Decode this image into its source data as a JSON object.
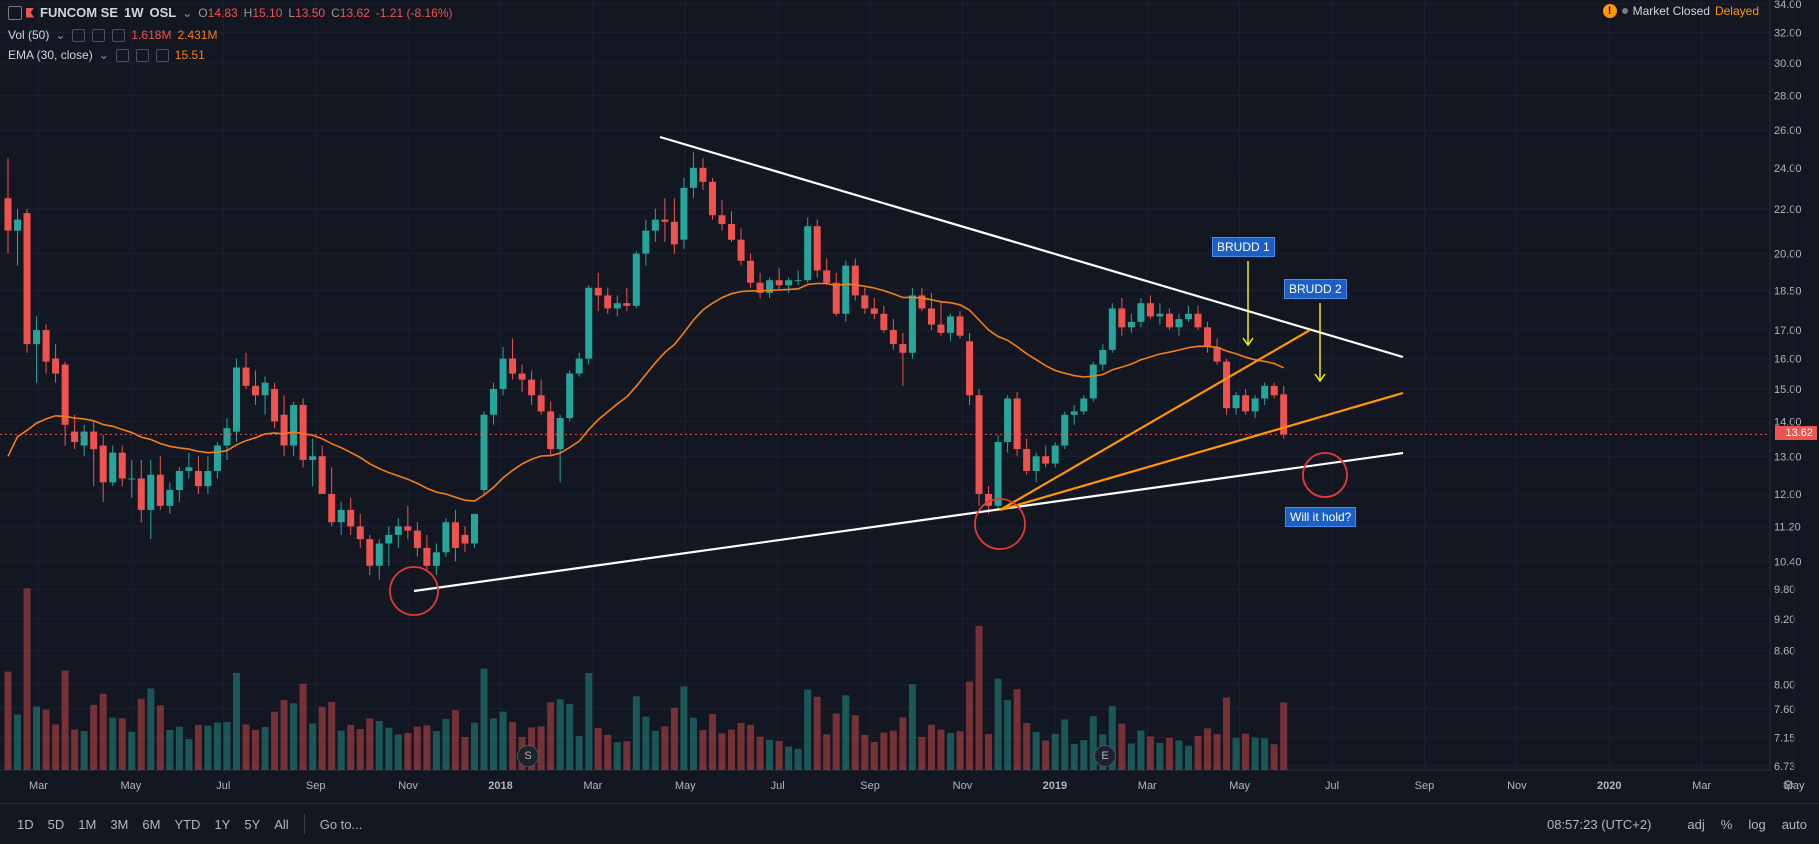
{
  "header": {
    "symbol": "FUNCOM SE",
    "interval": "1W",
    "exchange": "OSL",
    "ohlc": {
      "o_label": "O",
      "o": "14.83",
      "h_label": "H",
      "h": "15.10",
      "l_label": "L",
      "l": "13.50",
      "c_label": "C",
      "c": "13.62",
      "change": "-1.21 (-8.16%)"
    },
    "vol_label": "Vol (50)",
    "vol_values": [
      "1.618M",
      "2.431M"
    ],
    "ema_label": "EMA (30, close)",
    "ema_value": "15.51"
  },
  "status": {
    "market": "Market Closed",
    "delay": "Delayed"
  },
  "annotations": {
    "brudd1": "BRUDD 1",
    "brudd2": "BRUDD 2",
    "will_hold": "Will it hold?"
  },
  "events": {
    "split": "S",
    "earnings": "E"
  },
  "last_price_tag": "13.62",
  "colors": {
    "up": "#26a69a",
    "down": "#ef5350",
    "ema": "#f57f17",
    "trend_white": "#ffffff",
    "trend_orange": "#ff9800",
    "circle": "#e53935",
    "arrow": "#ffff00"
  },
  "toolbar": {
    "ranges": [
      "1D",
      "5D",
      "1M",
      "3M",
      "6M",
      "YTD",
      "1Y",
      "5Y",
      "All"
    ],
    "goto": "Go to...",
    "time": "08:57:23 (UTC+2)",
    "options": [
      "adj",
      "%",
      "log",
      "auto"
    ]
  },
  "chart_data": {
    "type": "candlestick",
    "y_scale": "log",
    "ylim": [
      6.73,
      34.0
    ],
    "y_ticks": [
      "34.00",
      "32.00",
      "30.00",
      "28.00",
      "26.00",
      "24.00",
      "22.00",
      "20.00",
      "18.50",
      "17.00",
      "16.00",
      "15.00",
      "14.00",
      "13.00",
      "12.00",
      "11.20",
      "10.40",
      "9.80",
      "9.20",
      "8.60",
      "8.00",
      "7.60",
      "7.15",
      "6.73"
    ],
    "x_ticks": [
      "Mar",
      "May",
      "Jul",
      "Sep",
      "Nov",
      "2018",
      "Mar",
      "May",
      "Jul",
      "Sep",
      "Nov",
      "2019",
      "Mar",
      "May",
      "Jul",
      "Sep",
      "Nov",
      "2020",
      "Mar",
      "May"
    ],
    "candles": [
      {
        "o": 22.5,
        "h": 24.5,
        "l": 20.0,
        "c": 21.0
      },
      {
        "o": 21.0,
        "h": 22.0,
        "l": 19.5,
        "c": 21.5
      },
      {
        "o": 21.8,
        "h": 22.0,
        "l": 16.2,
        "c": 16.5
      },
      {
        "o": 16.5,
        "h": 17.5,
        "l": 15.2,
        "c": 17.0
      },
      {
        "o": 17.0,
        "h": 17.2,
        "l": 15.5,
        "c": 15.9
      },
      {
        "o": 16.0,
        "h": 16.5,
        "l": 15.2,
        "c": 15.5
      },
      {
        "o": 15.8,
        "h": 15.9,
        "l": 13.3,
        "c": 13.9
      },
      {
        "o": 13.7,
        "h": 14.2,
        "l": 13.2,
        "c": 13.4
      },
      {
        "o": 13.3,
        "h": 13.9,
        "l": 13.0,
        "c": 13.7
      },
      {
        "o": 13.7,
        "h": 14.0,
        "l": 12.2,
        "c": 13.2
      },
      {
        "o": 13.3,
        "h": 13.6,
        "l": 11.8,
        "c": 12.3
      },
      {
        "o": 12.3,
        "h": 13.3,
        "l": 12.2,
        "c": 13.1
      },
      {
        "o": 13.1,
        "h": 13.3,
        "l": 12.2,
        "c": 12.4
      },
      {
        "o": 12.4,
        "h": 12.9,
        "l": 11.9,
        "c": 12.4
      },
      {
        "o": 12.4,
        "h": 12.9,
        "l": 11.3,
        "c": 11.6
      },
      {
        "o": 11.6,
        "h": 12.9,
        "l": 10.9,
        "c": 12.5
      },
      {
        "o": 12.5,
        "h": 13.0,
        "l": 11.6,
        "c": 11.7
      },
      {
        "o": 11.7,
        "h": 12.3,
        "l": 11.5,
        "c": 12.1
      },
      {
        "o": 12.1,
        "h": 12.7,
        "l": 11.8,
        "c": 12.6
      },
      {
        "o": 12.6,
        "h": 13.1,
        "l": 12.4,
        "c": 12.7
      },
      {
        "o": 12.6,
        "h": 13.0,
        "l": 12.0,
        "c": 12.2
      },
      {
        "o": 12.2,
        "h": 13.0,
        "l": 12.0,
        "c": 12.6
      },
      {
        "o": 12.6,
        "h": 13.4,
        "l": 12.4,
        "c": 13.3
      },
      {
        "o": 13.3,
        "h": 14.1,
        "l": 12.9,
        "c": 13.8
      },
      {
        "o": 13.7,
        "h": 16.0,
        "l": 13.4,
        "c": 15.7
      },
      {
        "o": 15.7,
        "h": 16.2,
        "l": 15.0,
        "c": 15.1
      },
      {
        "o": 15.1,
        "h": 15.6,
        "l": 14.5,
        "c": 14.8
      },
      {
        "o": 14.8,
        "h": 15.4,
        "l": 14.2,
        "c": 15.2
      },
      {
        "o": 15.0,
        "h": 15.2,
        "l": 13.8,
        "c": 14.0
      },
      {
        "o": 14.2,
        "h": 14.8,
        "l": 13.0,
        "c": 13.3
      },
      {
        "o": 13.3,
        "h": 14.6,
        "l": 13.0,
        "c": 14.5
      },
      {
        "o": 14.5,
        "h": 14.7,
        "l": 12.7,
        "c": 12.9
      },
      {
        "o": 12.9,
        "h": 13.5,
        "l": 12.2,
        "c": 13.0
      },
      {
        "o": 13.0,
        "h": 13.3,
        "l": 12.0,
        "c": 12.0
      },
      {
        "o": 12.0,
        "h": 12.7,
        "l": 11.2,
        "c": 11.3
      },
      {
        "o": 11.3,
        "h": 11.8,
        "l": 11.0,
        "c": 11.6
      },
      {
        "o": 11.6,
        "h": 11.9,
        "l": 11.0,
        "c": 11.2
      },
      {
        "o": 11.2,
        "h": 11.5,
        "l": 10.7,
        "c": 10.9
      },
      {
        "o": 10.9,
        "h": 11.0,
        "l": 10.1,
        "c": 10.3
      },
      {
        "o": 10.3,
        "h": 10.9,
        "l": 10.0,
        "c": 10.8
      },
      {
        "o": 10.8,
        "h": 11.2,
        "l": 10.3,
        "c": 11.0
      },
      {
        "o": 11.0,
        "h": 11.4,
        "l": 10.7,
        "c": 11.2
      },
      {
        "o": 11.2,
        "h": 11.7,
        "l": 10.9,
        "c": 11.1
      },
      {
        "o": 11.1,
        "h": 11.3,
        "l": 10.5,
        "c": 10.7
      },
      {
        "o": 10.7,
        "h": 11.0,
        "l": 10.2,
        "c": 10.3
      },
      {
        "o": 10.3,
        "h": 10.8,
        "l": 10.1,
        "c": 10.6
      },
      {
        "o": 10.6,
        "h": 11.4,
        "l": 10.5,
        "c": 11.3
      },
      {
        "o": 11.3,
        "h": 11.6,
        "l": 10.4,
        "c": 10.7
      },
      {
        "o": 11.0,
        "h": 11.2,
        "l": 10.6,
        "c": 10.8
      },
      {
        "o": 10.8,
        "h": 11.5,
        "l": 10.7,
        "c": 11.5
      },
      {
        "o": 12.1,
        "h": 14.3,
        "l": 12.0,
        "c": 14.2
      },
      {
        "o": 14.2,
        "h": 15.2,
        "l": 13.9,
        "c": 15.0
      },
      {
        "o": 15.0,
        "h": 16.4,
        "l": 14.8,
        "c": 16.0
      },
      {
        "o": 16.0,
        "h": 16.7,
        "l": 15.3,
        "c": 15.5
      },
      {
        "o": 15.5,
        "h": 15.8,
        "l": 14.9,
        "c": 15.3
      },
      {
        "o": 15.3,
        "h": 15.6,
        "l": 14.5,
        "c": 14.8
      },
      {
        "o": 14.8,
        "h": 15.3,
        "l": 14.2,
        "c": 14.3
      },
      {
        "o": 14.3,
        "h": 14.6,
        "l": 13.0,
        "c": 13.2
      },
      {
        "o": 13.2,
        "h": 14.2,
        "l": 12.3,
        "c": 14.1
      },
      {
        "o": 14.1,
        "h": 15.6,
        "l": 14.0,
        "c": 15.5
      },
      {
        "o": 15.5,
        "h": 16.2,
        "l": 15.4,
        "c": 16.0
      },
      {
        "o": 16.0,
        "h": 18.7,
        "l": 15.8,
        "c": 18.6
      },
      {
        "o": 18.6,
        "h": 19.2,
        "l": 17.7,
        "c": 18.3
      },
      {
        "o": 18.3,
        "h": 18.6,
        "l": 17.6,
        "c": 17.8
      },
      {
        "o": 17.8,
        "h": 18.3,
        "l": 17.5,
        "c": 18.0
      },
      {
        "o": 18.0,
        "h": 18.6,
        "l": 17.7,
        "c": 17.9
      },
      {
        "o": 17.9,
        "h": 20.1,
        "l": 17.8,
        "c": 20.0
      },
      {
        "o": 20.0,
        "h": 21.5,
        "l": 19.5,
        "c": 21.0
      },
      {
        "o": 21.0,
        "h": 22.0,
        "l": 20.5,
        "c": 21.5
      },
      {
        "o": 21.5,
        "h": 22.5,
        "l": 20.5,
        "c": 21.4
      },
      {
        "o": 21.4,
        "h": 22.5,
        "l": 20.0,
        "c": 20.4
      },
      {
        "o": 20.6,
        "h": 23.5,
        "l": 20.2,
        "c": 23.0
      },
      {
        "o": 23.0,
        "h": 24.8,
        "l": 22.5,
        "c": 24.0
      },
      {
        "o": 24.0,
        "h": 24.5,
        "l": 22.9,
        "c": 23.3
      },
      {
        "o": 23.3,
        "h": 23.5,
        "l": 21.5,
        "c": 21.7
      },
      {
        "o": 21.7,
        "h": 22.4,
        "l": 21.0,
        "c": 21.3
      },
      {
        "o": 21.3,
        "h": 21.9,
        "l": 20.5,
        "c": 20.6
      },
      {
        "o": 20.6,
        "h": 21.1,
        "l": 19.5,
        "c": 19.7
      },
      {
        "o": 19.7,
        "h": 20.0,
        "l": 18.6,
        "c": 18.8
      },
      {
        "o": 18.8,
        "h": 19.2,
        "l": 18.2,
        "c": 18.4
      },
      {
        "o": 18.4,
        "h": 19.0,
        "l": 18.2,
        "c": 18.9
      },
      {
        "o": 18.9,
        "h": 19.4,
        "l": 18.5,
        "c": 18.7
      },
      {
        "o": 18.7,
        "h": 19.0,
        "l": 18.4,
        "c": 18.9
      },
      {
        "o": 18.9,
        "h": 19.3,
        "l": 18.7,
        "c": 18.9
      },
      {
        "o": 18.9,
        "h": 21.6,
        "l": 18.8,
        "c": 21.2
      },
      {
        "o": 21.2,
        "h": 21.5,
        "l": 19.0,
        "c": 19.3
      },
      {
        "o": 19.3,
        "h": 19.8,
        "l": 18.7,
        "c": 18.8
      },
      {
        "o": 18.8,
        "h": 19.2,
        "l": 17.5,
        "c": 17.6
      },
      {
        "o": 17.6,
        "h": 19.7,
        "l": 17.3,
        "c": 19.5
      },
      {
        "o": 19.5,
        "h": 19.8,
        "l": 18.1,
        "c": 18.3
      },
      {
        "o": 18.3,
        "h": 18.6,
        "l": 17.6,
        "c": 17.8
      },
      {
        "o": 17.8,
        "h": 18.2,
        "l": 17.4,
        "c": 17.6
      },
      {
        "o": 17.6,
        "h": 17.9,
        "l": 16.9,
        "c": 17.0
      },
      {
        "o": 17.0,
        "h": 17.4,
        "l": 16.3,
        "c": 16.5
      },
      {
        "o": 16.5,
        "h": 16.9,
        "l": 15.1,
        "c": 16.2
      },
      {
        "o": 16.2,
        "h": 18.6,
        "l": 16.0,
        "c": 18.3
      },
      {
        "o": 18.3,
        "h": 18.6,
        "l": 17.7,
        "c": 17.8
      },
      {
        "o": 17.8,
        "h": 18.4,
        "l": 17.0,
        "c": 17.2
      },
      {
        "o": 17.2,
        "h": 18.1,
        "l": 16.8,
        "c": 16.9
      },
      {
        "o": 16.9,
        "h": 17.6,
        "l": 16.6,
        "c": 17.5
      },
      {
        "o": 17.5,
        "h": 17.7,
        "l": 16.7,
        "c": 16.8
      },
      {
        "o": 16.6,
        "h": 16.9,
        "l": 14.5,
        "c": 14.8
      },
      {
        "o": 14.8,
        "h": 15.0,
        "l": 11.7,
        "c": 12.0
      },
      {
        "o": 12.0,
        "h": 12.2,
        "l": 11.5,
        "c": 11.7
      },
      {
        "o": 11.7,
        "h": 13.6,
        "l": 11.6,
        "c": 13.4
      },
      {
        "o": 13.4,
        "h": 14.8,
        "l": 13.1,
        "c": 14.7
      },
      {
        "o": 14.7,
        "h": 14.9,
        "l": 13.0,
        "c": 13.2
      },
      {
        "o": 13.2,
        "h": 13.5,
        "l": 12.5,
        "c": 12.6
      },
      {
        "o": 12.6,
        "h": 13.1,
        "l": 12.3,
        "c": 13.0
      },
      {
        "o": 13.0,
        "h": 13.3,
        "l": 12.7,
        "c": 12.8
      },
      {
        "o": 12.8,
        "h": 13.4,
        "l": 12.7,
        "c": 13.3
      },
      {
        "o": 13.3,
        "h": 14.3,
        "l": 13.2,
        "c": 14.2
      },
      {
        "o": 14.2,
        "h": 14.5,
        "l": 13.9,
        "c": 14.3
      },
      {
        "o": 14.3,
        "h": 14.8,
        "l": 14.2,
        "c": 14.7
      },
      {
        "o": 14.7,
        "h": 15.9,
        "l": 14.6,
        "c": 15.8
      },
      {
        "o": 15.8,
        "h": 16.5,
        "l": 15.6,
        "c": 16.3
      },
      {
        "o": 16.3,
        "h": 18.0,
        "l": 16.2,
        "c": 17.8
      },
      {
        "o": 17.8,
        "h": 18.2,
        "l": 16.8,
        "c": 17.1
      },
      {
        "o": 17.1,
        "h": 17.6,
        "l": 16.9,
        "c": 17.3
      },
      {
        "o": 17.3,
        "h": 18.2,
        "l": 17.1,
        "c": 18.0
      },
      {
        "o": 18.0,
        "h": 18.3,
        "l": 17.4,
        "c": 17.5
      },
      {
        "o": 17.5,
        "h": 18.0,
        "l": 17.2,
        "c": 17.6
      },
      {
        "o": 17.6,
        "h": 17.8,
        "l": 17.0,
        "c": 17.1
      },
      {
        "o": 17.1,
        "h": 17.6,
        "l": 16.8,
        "c": 17.4
      },
      {
        "o": 17.4,
        "h": 17.9,
        "l": 17.3,
        "c": 17.6
      },
      {
        "o": 17.6,
        "h": 17.9,
        "l": 17.0,
        "c": 17.1
      },
      {
        "o": 17.1,
        "h": 17.3,
        "l": 16.2,
        "c": 16.4
      },
      {
        "o": 16.4,
        "h": 16.7,
        "l": 15.8,
        "c": 15.9
      },
      {
        "o": 15.9,
        "h": 16.0,
        "l": 14.2,
        "c": 14.4
      },
      {
        "o": 14.4,
        "h": 14.9,
        "l": 14.2,
        "c": 14.8
      },
      {
        "o": 14.8,
        "h": 15.0,
        "l": 14.2,
        "c": 14.3
      },
      {
        "o": 14.3,
        "h": 14.8,
        "l": 14.1,
        "c": 14.7
      },
      {
        "o": 14.7,
        "h": 15.2,
        "l": 14.5,
        "c": 15.1
      },
      {
        "o": 15.1,
        "h": 15.2,
        "l": 14.7,
        "c": 14.8
      },
      {
        "o": 14.83,
        "h": 15.1,
        "l": 13.5,
        "c": 13.62
      }
    ],
    "ema_30_last": 15.51,
    "volume_series": [
      {
        "name": "Vol (50)",
        "values_m": [
          1.618,
          2.431
        ]
      }
    ],
    "last_close": 13.62,
    "title": "FUNCOM SE 1W OSL"
  }
}
